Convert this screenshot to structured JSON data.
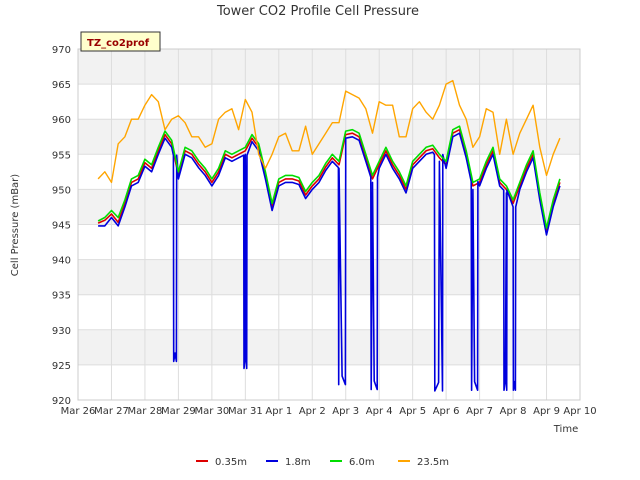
{
  "chart_data": {
    "type": "line",
    "title": "Tower CO2 Profile Cell Pressure",
    "xlabel": "Time",
    "ylabel": "Cell Pressure (mBar)",
    "station_tag": "TZ_co2prof",
    "xlim": [
      0,
      15
    ],
    "ylim": [
      920,
      970
    ],
    "yticks": [
      920,
      925,
      930,
      935,
      940,
      945,
      950,
      955,
      960,
      965,
      970
    ],
    "xticks": [
      {
        "v": 0,
        "label": "Mar 26"
      },
      {
        "v": 1,
        "label": "Mar 27"
      },
      {
        "v": 2,
        "label": "Mar 28"
      },
      {
        "v": 3,
        "label": "Mar 29"
      },
      {
        "v": 4,
        "label": "Mar 30"
      },
      {
        "v": 5,
        "label": "Mar 31"
      },
      {
        "v": 6,
        "label": "Apr 1"
      },
      {
        "v": 7,
        "label": "Apr 2"
      },
      {
        "v": 8,
        "label": "Apr 3"
      },
      {
        "v": 9,
        "label": "Apr 4"
      },
      {
        "v": 10,
        "label": "Apr 5"
      },
      {
        "v": 11,
        "label": "Apr 6"
      },
      {
        "v": 12,
        "label": "Apr 7"
      },
      {
        "v": 13,
        "label": "Apr 8"
      },
      {
        "v": 14,
        "label": "Apr 9"
      },
      {
        "v": 15,
        "label": "Apr 10"
      }
    ],
    "grid": true,
    "legend_position": "bottom",
    "x": [
      0.6,
      0.8,
      1.0,
      1.2,
      1.4,
      1.6,
      1.8,
      2.0,
      2.2,
      2.4,
      2.6,
      2.8,
      3.0,
      3.2,
      3.4,
      3.6,
      3.8,
      4.0,
      4.2,
      4.4,
      4.6,
      4.8,
      5.0,
      5.2,
      5.4,
      5.6,
      5.8,
      6.0,
      6.2,
      6.4,
      6.6,
      6.8,
      7.0,
      7.2,
      7.4,
      7.6,
      7.8,
      8.0,
      8.2,
      8.4,
      8.6,
      8.8,
      9.0,
      9.2,
      9.4,
      9.6,
      9.8,
      10.0,
      10.2,
      10.4,
      10.6,
      10.8,
      11.0,
      11.2,
      11.4,
      11.6,
      11.8,
      12.0,
      12.2,
      12.4,
      12.6,
      12.8,
      13.0,
      13.2,
      13.4,
      13.6,
      13.8,
      14.0,
      14.2,
      14.4
    ],
    "series": [
      {
        "name": "0.35m",
        "color": "#dd0000",
        "values": [
          945.2,
          945.6,
          946.5,
          945.3,
          948.0,
          951.0,
          951.5,
          953.8,
          953.0,
          955.5,
          957.8,
          956.5,
          952.0,
          955.5,
          955.0,
          953.6,
          952.5,
          951.0,
          952.5,
          955.0,
          954.5,
          955.0,
          955.5,
          957.3,
          956.0,
          952.0,
          947.5,
          951.0,
          951.5,
          951.5,
          951.2,
          949.2,
          950.5,
          951.5,
          953.2,
          954.5,
          953.5,
          957.8,
          958.0,
          957.5,
          954.5,
          951.5,
          953.5,
          955.5,
          953.5,
          952.0,
          950.0,
          953.5,
          954.5,
          955.5,
          955.8,
          954.5,
          953.5,
          958.0,
          958.5,
          955.0,
          950.5,
          951.0,
          953.5,
          955.5,
          951.0,
          950.0,
          948.0,
          950.5,
          953.0,
          955.0,
          949.0,
          944.0,
          948.0,
          951.0
        ]
      },
      {
        "name": "1.8m",
        "color": "#0000dd",
        "values": [
          944.8,
          944.8,
          946.0,
          944.8,
          947.5,
          950.5,
          951.0,
          953.3,
          952.5,
          955.0,
          957.3,
          956.0,
          951.5,
          955.0,
          954.5,
          953.1,
          952.0,
          950.5,
          952.0,
          954.5,
          954.0,
          954.5,
          955.0,
          956.8,
          955.5,
          951.5,
          947.0,
          950.5,
          951.0,
          951.0,
          950.7,
          948.7,
          950.0,
          951.0,
          952.7,
          954.0,
          953.0,
          957.3,
          957.5,
          957.0,
          954.0,
          951.0,
          953.0,
          955.0,
          953.0,
          951.5,
          949.5,
          953.0,
          954.0,
          955.0,
          955.3,
          954.0,
          953.0,
          957.5,
          958.0,
          954.5,
          950.0,
          950.5,
          953.0,
          955.0,
          950.5,
          949.5,
          947.5,
          950.0,
          952.5,
          954.5,
          948.5,
          943.5,
          947.5,
          950.5
        ]
      },
      {
        "name": "6.0m",
        "color": "#00dd00",
        "values": [
          945.5,
          946.0,
          947.0,
          946.0,
          948.5,
          951.5,
          952.0,
          954.3,
          953.5,
          956.0,
          958.3,
          957.0,
          952.5,
          956.0,
          955.5,
          954.1,
          953.0,
          951.5,
          953.0,
          955.5,
          955.0,
          955.5,
          956.0,
          957.8,
          956.5,
          952.5,
          948.0,
          951.5,
          952.0,
          952.0,
          951.7,
          949.7,
          951.0,
          952.0,
          953.7,
          955.0,
          954.0,
          958.3,
          958.5,
          958.0,
          955.0,
          952.0,
          954.0,
          956.0,
          954.0,
          952.5,
          950.5,
          954.0,
          955.0,
          956.0,
          956.3,
          955.0,
          954.0,
          958.5,
          959.0,
          955.5,
          951.0,
          951.5,
          954.0,
          956.0,
          951.5,
          950.5,
          948.5,
          951.0,
          953.5,
          955.5,
          949.5,
          944.5,
          948.5,
          951.5
        ]
      },
      {
        "name": "23.5m",
        "color": "#ffa500",
        "values": [
          951.5,
          952.5,
          951.0,
          956.5,
          957.5,
          960.0,
          960.0,
          962.0,
          963.5,
          962.5,
          958.5,
          960.0,
          960.5,
          959.5,
          957.5,
          957.5,
          956.0,
          956.5,
          960.0,
          961.0,
          961.5,
          958.5,
          962.8,
          961.0,
          955.0,
          953.0,
          955.0,
          957.5,
          958.0,
          955.5,
          955.5,
          959.0,
          955.0,
          956.5,
          958.0,
          959.5,
          959.5,
          964.0,
          963.5,
          963.0,
          961.5,
          958.0,
          962.5,
          962.0,
          962.0,
          957.5,
          957.5,
          961.5,
          962.5,
          961.0,
          960.0,
          962.0,
          965.0,
          965.5,
          962.0,
          960.0,
          956.0,
          957.5,
          961.5,
          961.0,
          955.0,
          960.0,
          955.0,
          958.0,
          960.0,
          962.0,
          956.0,
          952.0,
          955.0,
          957.3
        ]
      }
    ],
    "dropouts": [
      {
        "x0": 2.85,
        "x1": 2.95,
        "min": 925.5
      },
      {
        "x0": 4.95,
        "x1": 5.05,
        "min": 924.5
      },
      {
        "x0": 7.78,
        "x1": 8.0,
        "min": 922.2
      },
      {
        "x0": 8.75,
        "x1": 8.95,
        "min": 921.5
      },
      {
        "x0": 10.65,
        "x1": 10.9,
        "min": 921.3
      },
      {
        "x0": 11.75,
        "x1": 11.95,
        "min": 921.4
      },
      {
        "x0": 12.72,
        "x1": 12.82,
        "min": 921.4
      },
      {
        "x0": 13.0,
        "x1": 13.08,
        "min": 921.4
      }
    ]
  }
}
